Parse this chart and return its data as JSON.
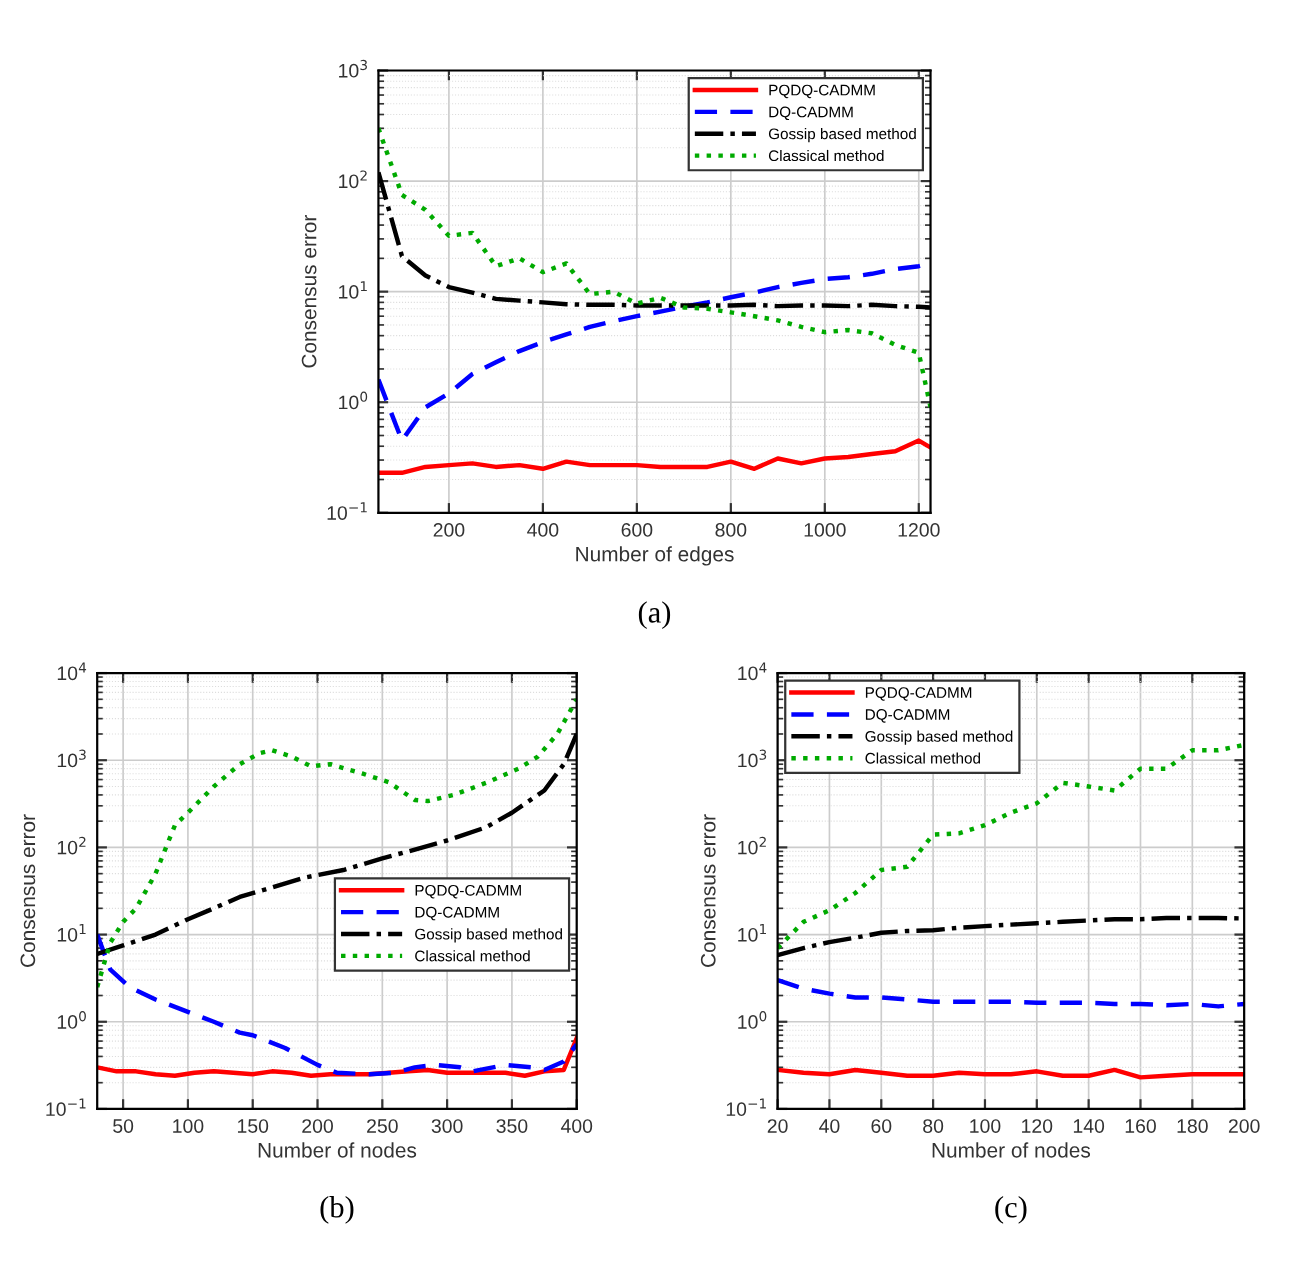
{
  "chart_data": [
    {
      "type": "line",
      "xlabel": "Number of edges",
      "ylabel": "Consensus error",
      "annotations": [
        "(a)"
      ],
      "log": "y",
      "grid": true,
      "legend": "top right",
      "x": [
        50,
        100,
        150,
        200,
        250,
        300,
        350,
        400,
        450,
        500,
        550,
        600,
        650,
        700,
        750,
        800,
        850,
        900,
        950,
        1000,
        1050,
        1100,
        1150,
        1200,
        1225
      ],
      "xlim": [
        50,
        1225
      ],
      "xticks": [
        200,
        400,
        600,
        800,
        1000,
        1200
      ],
      "ylim": [
        0.1,
        1000
      ],
      "yticks": [
        {
          "value": 0.1,
          "label": "10$^{−1}$"
        },
        {
          "value": 1,
          "label": "10$^{0}$"
        },
        {
          "value": 10,
          "label": "10$^{1}$"
        },
        {
          "value": 100,
          "label": "10$^{2}$"
        },
        {
          "value": 1000,
          "label": "10$^{3}$"
        }
      ],
      "series": [
        {
          "name": "PQDQ-CADMM",
          "color": "#ff0000",
          "line_style": "solid",
          "values": [
            0.23,
            0.23,
            0.26,
            0.27,
            0.28,
            0.26,
            0.27,
            0.25,
            0.29,
            0.27,
            0.27,
            0.27,
            0.26,
            0.26,
            0.26,
            0.29,
            0.25,
            0.31,
            0.28,
            0.31,
            0.32,
            0.34,
            0.36,
            0.45,
            0.39
          ]
        },
        {
          "name": "DQ-CADMM",
          "color": "#0000ff",
          "line_style": "dashed",
          "values": [
            1.6,
            0.45,
            0.9,
            1.2,
            1.8,
            2.3,
            2.9,
            3.5,
            4.1,
            4.8,
            5.4,
            6.0,
            6.6,
            7.3,
            8.0,
            8.9,
            9.8,
            11,
            12,
            13,
            13.5,
            14.5,
            16,
            17,
            18
          ]
        },
        {
          "name": "Gossip based method",
          "color": "#000000",
          "line_style": "dashdot",
          "values": [
            120,
            21,
            14,
            11,
            9.8,
            8.6,
            8.3,
            8.0,
            7.7,
            7.6,
            7.6,
            7.5,
            7.5,
            7.5,
            7.5,
            7.5,
            7.6,
            7.4,
            7.5,
            7.5,
            7.4,
            7.6,
            7.4,
            7.3,
            7.2
          ]
        },
        {
          "name": "Classical method",
          "color": "#00aa00",
          "line_style": "dotted",
          "values": [
            300,
            75,
            55,
            32,
            34,
            17,
            20,
            15,
            18,
            9.5,
            10,
            7.8,
            8.8,
            7.2,
            7.0,
            6.5,
            6.0,
            5.5,
            4.8,
            4.3,
            4.5,
            4.2,
            3.3,
            2.8,
            0.9
          ]
        }
      ]
    },
    {
      "type": "line",
      "xlabel": "Number of nodes",
      "ylabel": "Consensus error",
      "annotations": [
        "(b)"
      ],
      "log": "y",
      "grid": true,
      "legend": "right",
      "xlim": [
        30,
        400
      ],
      "xticks": [
        50,
        100,
        150,
        200,
        250,
        300,
        350,
        400
      ],
      "ylim": [
        0.1,
        10000
      ],
      "yticks": [
        {
          "value": 0.1,
          "label": "10$^{−1}$"
        },
        {
          "value": 1,
          "label": "10$^{0}$"
        },
        {
          "value": 10,
          "label": "10$^{1}$"
        },
        {
          "value": 100,
          "label": "10$^{2}$"
        },
        {
          "value": 1000,
          "label": "10$^{3}$"
        },
        {
          "value": 10000,
          "label": "10$^{4}$"
        }
      ],
      "series": [
        {
          "name": "PQDQ-CADMM",
          "color": "#ff0000",
          "line_style": "solid",
          "x": [
            30,
            45,
            60,
            75,
            90,
            105,
            120,
            135,
            150,
            165,
            180,
            195,
            210,
            225,
            240,
            255,
            270,
            285,
            300,
            315,
            330,
            345,
            360,
            375,
            390,
            400
          ],
          "values": [
            0.3,
            0.27,
            0.27,
            0.25,
            0.24,
            0.26,
            0.27,
            0.26,
            0.25,
            0.27,
            0.26,
            0.24,
            0.25,
            0.25,
            0.25,
            0.26,
            0.27,
            0.28,
            0.26,
            0.26,
            0.26,
            0.26,
            0.24,
            0.27,
            0.28,
            0.65
          ]
        },
        {
          "name": "DQ-CADMM",
          "color": "#0000ff",
          "line_style": "dashed",
          "x": [
            30,
            40,
            55,
            75,
            100,
            120,
            140,
            150,
            175,
            200,
            215,
            240,
            260,
            275,
            290,
            310,
            320,
            345,
            365,
            375,
            390,
            400
          ],
          "values": [
            10,
            4,
            2.5,
            1.8,
            1.3,
            1.0,
            0.75,
            0.7,
            0.5,
            0.32,
            0.26,
            0.25,
            0.26,
            0.3,
            0.32,
            0.3,
            0.27,
            0.32,
            0.3,
            0.28,
            0.35,
            0.55
          ]
        },
        {
          "name": "Gossip based method",
          "color": "#000000",
          "line_style": "dashdot",
          "x": [
            30,
            50,
            75,
            100,
            120,
            140,
            160,
            190,
            220,
            250,
            270,
            300,
            330,
            350,
            375,
            390,
            400
          ],
          "values": [
            6,
            7.5,
            10,
            15,
            20,
            27,
            33,
            45,
            55,
            75,
            90,
            120,
            170,
            250,
            450,
            900,
            2000
          ]
        },
        {
          "name": "Classical method",
          "color": "#00aa00",
          "line_style": "dotted",
          "x": [
            30,
            40,
            50,
            60,
            75,
            90,
            100,
            120,
            140,
            155,
            165,
            180,
            195,
            210,
            235,
            255,
            275,
            285,
            305,
            330,
            355,
            370,
            385,
            400
          ],
          "values": [
            2.5,
            8,
            14,
            20,
            50,
            180,
            250,
            500,
            900,
            1200,
            1300,
            1100,
            850,
            900,
            700,
            560,
            350,
            340,
            400,
            550,
            800,
            1100,
            2000,
            5000
          ]
        }
      ]
    },
    {
      "type": "line",
      "xlabel": "Number of nodes",
      "ylabel": "Consensus error",
      "annotations": [
        "(c)"
      ],
      "log": "y",
      "grid": true,
      "legend": "top left",
      "x": [
        20,
        30,
        40,
        50,
        60,
        70,
        80,
        90,
        100,
        110,
        120,
        130,
        140,
        150,
        160,
        170,
        180,
        190,
        200
      ],
      "xlim": [
        20,
        200
      ],
      "xticks": [
        20,
        40,
        60,
        80,
        100,
        120,
        140,
        160,
        180,
        200
      ],
      "ylim": [
        0.1,
        10000
      ],
      "yticks": [
        {
          "value": 0.1,
          "label": "10$^{−1}$"
        },
        {
          "value": 1,
          "label": "10$^{0}$"
        },
        {
          "value": 10,
          "label": "10$^{1}$"
        },
        {
          "value": 100,
          "label": "10$^{2}$"
        },
        {
          "value": 1000,
          "label": "10$^{3}$"
        },
        {
          "value": 10000,
          "label": "10$^{4}$"
        }
      ],
      "series": [
        {
          "name": "PQDQ-CADMM",
          "color": "#ff0000",
          "line_style": "solid",
          "values": [
            0.28,
            0.26,
            0.25,
            0.28,
            0.26,
            0.24,
            0.24,
            0.26,
            0.25,
            0.25,
            0.27,
            0.24,
            0.24,
            0.28,
            0.23,
            0.24,
            0.25,
            0.25,
            0.25
          ]
        },
        {
          "name": "DQ-CADMM",
          "color": "#0000ff",
          "line_style": "dashed",
          "values": [
            3.0,
            2.4,
            2.1,
            1.9,
            1.9,
            1.8,
            1.7,
            1.7,
            1.7,
            1.7,
            1.65,
            1.65,
            1.65,
            1.6,
            1.6,
            1.55,
            1.6,
            1.5,
            1.6
          ]
        },
        {
          "name": "Gossip based method",
          "color": "#000000",
          "line_style": "dashdot",
          "values": [
            5.8,
            7,
            8.2,
            9.2,
            10.5,
            11,
            11.2,
            12,
            12.5,
            13,
            13.5,
            14,
            14.5,
            15,
            15,
            15.5,
            15.5,
            15.5,
            15.3
          ]
        },
        {
          "name": "Classical method",
          "color": "#00aa00",
          "line_style": "dotted",
          "values": [
            7,
            14,
            19,
            30,
            55,
            60,
            140,
            145,
            180,
            250,
            320,
            550,
            500,
            450,
            800,
            800,
            1300,
            1300,
            1500
          ]
        }
      ]
    }
  ]
}
